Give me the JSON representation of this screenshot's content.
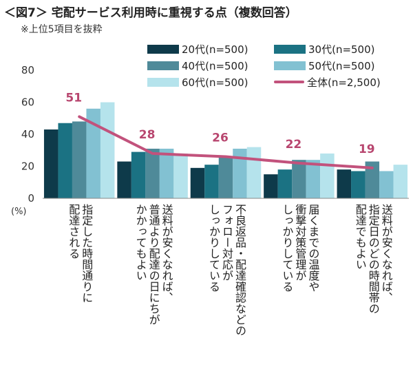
{
  "title": "＜図7＞ 宅配サービス利用時に重視する点（複数回答）",
  "subtitle": "※上位5項目を抜粋",
  "unit_label": "(%)",
  "colors": {
    "20s": "#0e3a4a",
    "30s": "#1b7283",
    "40s": "#4f8a99",
    "50s": "#82c1d2",
    "60s": "#b5e3ec",
    "total": "#c2527c"
  },
  "chart_data": {
    "type": "bar",
    "categories": [
      "指定した時間通りに\n配達される",
      "送料が安くなれば、\n普通より配達の日にちが\nかかってもよい",
      "不良返品・配達確認などの\nフォロー対応が\nしっかりしている",
      "届くまでの温度や\n衝撃対策管理が\nしっかりしている",
      "送料が安くなれば、\n指定日のどの時間帯の\n配達でもよい"
    ],
    "series": [
      {
        "name": "20代(n=500)",
        "values": [
          43,
          23,
          19,
          15,
          18
        ]
      },
      {
        "name": "30代(n=500)",
        "values": [
          47,
          29,
          21,
          18,
          17
        ]
      },
      {
        "name": "40代(n=500)",
        "values": [
          48,
          31,
          26,
          24,
          23
        ]
      },
      {
        "name": "50代(n=500)",
        "values": [
          56,
          31,
          31,
          24,
          17
        ]
      },
      {
        "name": "60代(n=500)",
        "values": [
          60,
          28,
          32,
          28,
          21
        ]
      }
    ],
    "line_series": {
      "name": "全体(n=2,500)",
      "values": [
        51,
        28,
        26,
        22,
        19
      ]
    },
    "data_labels": [
      "51",
      "28",
      "26",
      "22",
      "19"
    ],
    "y_ticks": [
      "0",
      "20",
      "40",
      "60",
      "80"
    ],
    "ylim": [
      0,
      80
    ],
    "grid": false,
    "legend_position": "top-right"
  }
}
